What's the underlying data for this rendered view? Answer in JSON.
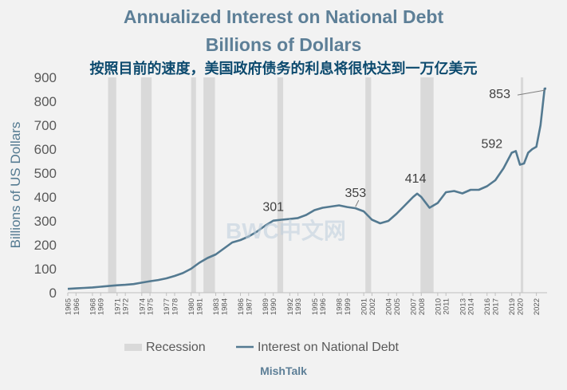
{
  "header": {
    "title_line1": "Annualized Interest on National Debt",
    "title_line2": "Billions of Dollars",
    "subtitle_cn": "按照目前的速度，美国政府债务的利息将很快达到一万亿美元"
  },
  "footer": {
    "source": "MishTalk"
  },
  "watermark": "BWC中文网",
  "colors": {
    "line": "#547a91",
    "recession": "#d9d9d9",
    "text": "#595959",
    "title": "#5d7f97",
    "subtitle": "#0c4a6e",
    "background": "#f2f2f2"
  },
  "chart_data": {
    "type": "line",
    "title": "Annualized Interest on National Debt",
    "subtitle": "Billions of Dollars",
    "xlabel": "",
    "ylabel": "Billions of US Dollars",
    "ylim": [
      0,
      900
    ],
    "yticks": [
      0,
      100,
      200,
      300,
      400,
      500,
      600,
      700,
      800,
      900
    ],
    "xlim": [
      1965,
      2023.3
    ],
    "xticks": [
      1965,
      1966,
      1968,
      1969,
      1971,
      1972,
      1974,
      1975,
      1977,
      1978,
      1980,
      1981,
      1983,
      1984,
      1986,
      1987,
      1989,
      1990,
      1992,
      1993,
      1995,
      1996,
      1998,
      1999,
      2001,
      2002,
      2004,
      2005,
      2007,
      2008,
      2010,
      2011,
      2013,
      2014,
      2016,
      2017,
      2019,
      2020,
      2022
    ],
    "grid": false,
    "legend": {
      "position": "bottom",
      "entries": [
        "Recession",
        "Interest on National Debt"
      ]
    },
    "recessions": [
      [
        1969.9,
        1970.9
      ],
      [
        1973.9,
        1975.2
      ],
      [
        1980.0,
        1980.6
      ],
      [
        1981.5,
        1982.9
      ],
      [
        1990.5,
        1991.2
      ],
      [
        2001.2,
        2001.9
      ],
      [
        2007.9,
        2009.5
      ],
      [
        2020.1,
        2020.4
      ]
    ],
    "series": [
      {
        "name": "Interest on National Debt",
        "x": [
          1965,
          1966,
          1967,
          1968,
          1969,
          1970,
          1971,
          1972,
          1973,
          1974,
          1975,
          1976,
          1977,
          1978,
          1979,
          1980,
          1981,
          1982,
          1983,
          1984,
          1985,
          1986,
          1987,
          1988,
          1989,
          1990,
          1991,
          1992,
          1993,
          1994,
          1995,
          1996,
          1997,
          1998,
          1999,
          2000,
          2001,
          2002,
          2003,
          2004,
          2005,
          2006,
          2007,
          2007.5,
          2008,
          2009,
          2010,
          2011,
          2012,
          2013,
          2014,
          2015,
          2016,
          2017,
          2018,
          2019,
          2019.5,
          2020,
          2020.5,
          2021,
          2021.5,
          2022,
          2022.5,
          2023,
          2023.2
        ],
        "y": [
          16,
          18,
          20,
          22,
          25,
          28,
          31,
          33,
          36,
          42,
          48,
          53,
          60,
          70,
          82,
          100,
          125,
          145,
          160,
          185,
          210,
          220,
          235,
          255,
          280,
          301,
          305,
          308,
          312,
          325,
          345,
          355,
          360,
          365,
          358,
          353,
          340,
          305,
          290,
          300,
          330,
          365,
          400,
          414,
          400,
          355,
          375,
          420,
          425,
          415,
          430,
          430,
          445,
          470,
          520,
          585,
          592,
          535,
          540,
          585,
          600,
          610,
          700,
          853,
          853
        ]
      }
    ],
    "annotations": [
      {
        "x": 1990,
        "y": 301,
        "label": "301"
      },
      {
        "x": 2000,
        "y": 353,
        "label": "353"
      },
      {
        "x": 2007.5,
        "y": 414,
        "label": "414"
      },
      {
        "x": 2019.5,
        "y": 592,
        "label": "592"
      },
      {
        "x": 2023.2,
        "y": 853,
        "label": "853"
      }
    ]
  }
}
